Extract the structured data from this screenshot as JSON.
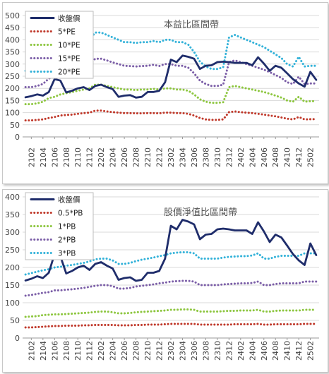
{
  "chart_data": [
    {
      "type": "line",
      "title": "本益比區間帶",
      "xlabel": "",
      "ylabel": "",
      "ylim": [
        0,
        500
      ],
      "yticks": [
        0,
        50,
        100,
        150,
        200,
        250,
        300,
        350,
        400,
        450,
        500
      ],
      "x": [
        "2101",
        "2102",
        "2103",
        "2104",
        "2105",
        "2106",
        "2107",
        "2108",
        "2109",
        "2110",
        "2111",
        "2112",
        "2201",
        "2202",
        "2203",
        "2204",
        "2205",
        "2206",
        "2207",
        "2208",
        "2209",
        "2210",
        "2211",
        "2212",
        "2301",
        "2302",
        "2303",
        "2304",
        "2305",
        "2306",
        "2307",
        "2308",
        "2309",
        "2310",
        "2311",
        "2312",
        "2401",
        "2402",
        "2403",
        "2404",
        "2405",
        "2406",
        "2407",
        "2408",
        "2409",
        "2410",
        "2411",
        "2412",
        "2501",
        "2502",
        "2503"
      ],
      "xtick_labels": [
        "2102",
        "2104",
        "2106",
        "2108",
        "2110",
        "2112",
        "2202",
        "2204",
        "2206",
        "2208",
        "2210",
        "2212",
        "2302",
        "2304",
        "2306",
        "2308",
        "2310",
        "2312",
        "2402",
        "2404",
        "2406",
        "2408",
        "2410",
        "2412",
        "2502"
      ],
      "grid": true,
      "legend_position": "top-left",
      "series": [
        {
          "name": "收盤價",
          "color": "#1f2d6b",
          "style": "solid",
          "values": [
            163,
            168,
            175,
            170,
            185,
            238,
            232,
            183,
            190,
            200,
            205,
            193,
            210,
            215,
            205,
            197,
            165,
            170,
            172,
            162,
            165,
            185,
            185,
            190,
            225,
            318,
            308,
            335,
            330,
            322,
            280,
            293,
            295,
            308,
            310,
            308,
            305,
            305,
            305,
            295,
            328,
            302,
            272,
            293,
            285,
            262,
            238,
            220,
            207,
            268,
            235
          ]
        },
        {
          "name": "5*PE",
          "color": "#c0392b",
          "style": "dotted",
          "values": [
            68,
            68,
            70,
            72,
            78,
            82,
            88,
            90,
            92,
            95,
            98,
            100,
            108,
            108,
            105,
            102,
            100,
            98,
            98,
            97,
            97,
            98,
            98,
            97,
            100,
            100,
            98,
            98,
            95,
            88,
            78,
            72,
            70,
            70,
            72,
            102,
            105,
            102,
            100,
            98,
            95,
            92,
            88,
            85,
            80,
            75,
            72,
            82,
            72,
            73,
            73
          ]
        },
        {
          "name": "10*PE",
          "color": "#8dc63f",
          "style": "dotted",
          "values": [
            135,
            135,
            138,
            145,
            160,
            165,
            175,
            180,
            185,
            190,
            195,
            200,
            215,
            215,
            210,
            205,
            200,
            195,
            195,
            193,
            195,
            195,
            198,
            195,
            200,
            200,
            195,
            195,
            190,
            175,
            155,
            145,
            140,
            140,
            143,
            205,
            210,
            205,
            200,
            195,
            190,
            185,
            178,
            170,
            162,
            150,
            145,
            165,
            145,
            147,
            147
          ]
        },
        {
          "name": "15*PE",
          "color": "#7b5ea7",
          "style": "dotted",
          "values": [
            205,
            205,
            210,
            218,
            240,
            250,
            265,
            272,
            278,
            285,
            293,
            300,
            322,
            322,
            315,
            307,
            300,
            293,
            292,
            290,
            292,
            293,
            297,
            292,
            300,
            300,
            293,
            293,
            285,
            262,
            232,
            218,
            210,
            210,
            215,
            308,
            315,
            308,
            300,
            293,
            285,
            277,
            267,
            255,
            243,
            225,
            218,
            248,
            218,
            220,
            220
          ]
        },
        {
          "name": "20*PE",
          "color": "#33b2d9",
          "style": "dotted",
          "values": [
            272,
            272,
            280,
            290,
            320,
            333,
            352,
            362,
            370,
            380,
            390,
            400,
            430,
            430,
            420,
            410,
            400,
            390,
            390,
            387,
            390,
            390,
            395,
            390,
            400,
            400,
            390,
            390,
            380,
            350,
            310,
            290,
            280,
            280,
            287,
            410,
            420,
            410,
            400,
            390,
            380,
            370,
            355,
            340,
            325,
            300,
            290,
            330,
            290,
            293,
            293
          ]
        }
      ]
    },
    {
      "type": "line",
      "title": "股價淨值比區間帶",
      "xlabel": "",
      "ylabel": "",
      "ylim": [
        0,
        400
      ],
      "yticks": [
        0,
        50,
        100,
        150,
        200,
        250,
        300,
        350,
        400
      ],
      "x": [
        "2101",
        "2102",
        "2103",
        "2104",
        "2105",
        "2106",
        "2107",
        "2108",
        "2109",
        "2110",
        "2111",
        "2112",
        "2201",
        "2202",
        "2203",
        "2204",
        "2205",
        "2206",
        "2207",
        "2208",
        "2209",
        "2210",
        "2211",
        "2212",
        "2301",
        "2302",
        "2303",
        "2304",
        "2305",
        "2306",
        "2307",
        "2308",
        "2309",
        "2310",
        "2311",
        "2312",
        "2401",
        "2402",
        "2403",
        "2404",
        "2405",
        "2406",
        "2407",
        "2408",
        "2409",
        "2410",
        "2411",
        "2412",
        "2501",
        "2502",
        "2503"
      ],
      "xtick_labels": [
        "2102",
        "2104",
        "2106",
        "2108",
        "2110",
        "2112",
        "2202",
        "2204",
        "2206",
        "2208",
        "2210",
        "2212",
        "2302",
        "2304",
        "2306",
        "2308",
        "2310",
        "2312",
        "2402",
        "2404",
        "2406",
        "2408",
        "2410",
        "2412",
        "2502"
      ],
      "grid": true,
      "legend_position": "top-left",
      "series": [
        {
          "name": "收盤價",
          "color": "#1f2d6b",
          "style": "solid",
          "values": [
            163,
            168,
            175,
            170,
            185,
            238,
            232,
            183,
            190,
            200,
            205,
            193,
            210,
            215,
            205,
            197,
            165,
            170,
            172,
            162,
            165,
            185,
            185,
            190,
            225,
            318,
            308,
            335,
            330,
            322,
            280,
            293,
            295,
            308,
            310,
            308,
            305,
            305,
            305,
            295,
            328,
            302,
            272,
            293,
            285,
            262,
            238,
            220,
            207,
            268,
            235
          ]
        },
        {
          "name": "0.5*PB",
          "color": "#c0392b",
          "style": "dotted",
          "values": [
            30,
            30,
            31,
            32,
            33,
            34,
            34,
            35,
            35,
            35,
            36,
            36,
            37,
            37,
            37,
            37,
            36,
            36,
            36,
            37,
            37,
            38,
            38,
            38,
            39,
            40,
            40,
            40,
            40,
            40,
            38,
            38,
            38,
            38,
            38,
            38,
            39,
            39,
            39,
            39,
            40,
            38,
            38,
            39,
            39,
            39,
            39,
            39,
            40,
            40,
            40
          ]
        },
        {
          "name": "1*PB",
          "color": "#8dc63f",
          "style": "dotted",
          "values": [
            60,
            61,
            62,
            65,
            66,
            67,
            67,
            68,
            69,
            70,
            71,
            72,
            74,
            75,
            75,
            73,
            70,
            70,
            71,
            73,
            74,
            75,
            76,
            77,
            78,
            80,
            80,
            81,
            81,
            80,
            75,
            75,
            75,
            75,
            76,
            77,
            77,
            78,
            78,
            78,
            80,
            75,
            75,
            77,
            78,
            78,
            78,
            78,
            80,
            80,
            80
          ]
        },
        {
          "name": "2*PB",
          "color": "#7b5ea7",
          "style": "dotted",
          "values": [
            120,
            122,
            125,
            128,
            130,
            135,
            135,
            137,
            138,
            140,
            142,
            145,
            148,
            150,
            150,
            147,
            140,
            140,
            142,
            146,
            148,
            150,
            152,
            155,
            157,
            160,
            161,
            162,
            162,
            160,
            150,
            150,
            150,
            150,
            152,
            153,
            154,
            155,
            155,
            156,
            160,
            150,
            150,
            153,
            155,
            155,
            155,
            155,
            160,
            160,
            160
          ]
        },
        {
          "name": "3*PB",
          "color": "#33b2d9",
          "style": "dotted",
          "values": [
            180,
            184,
            188,
            192,
            195,
            200,
            202,
            205,
            207,
            210,
            213,
            217,
            223,
            225,
            225,
            220,
            210,
            210,
            213,
            218,
            222,
            225,
            228,
            232,
            235,
            240,
            242,
            243,
            243,
            240,
            225,
            225,
            225,
            225,
            228,
            230,
            231,
            232,
            232,
            234,
            240,
            225,
            225,
            230,
            233,
            233,
            233,
            233,
            240,
            240,
            240
          ]
        }
      ]
    }
  ]
}
